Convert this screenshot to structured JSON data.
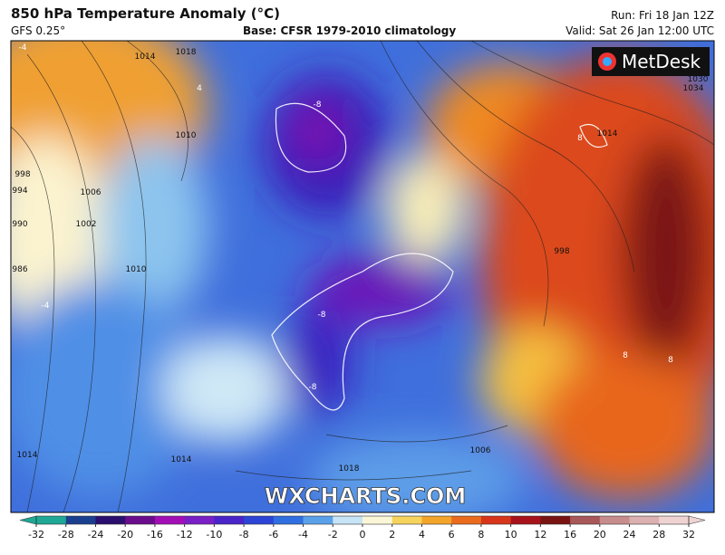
{
  "header": {
    "title": "850 hPa Temperature Anomaly (°C)",
    "model": "GFS 0.25°",
    "base": "Base: CFSR 1979-2010 climatology",
    "run": "Run: Fri 18 Jan 12Z",
    "valid": "Valid: Sat 26 Jan 12:00 UTC"
  },
  "logo": "MetDesk",
  "watermark": "WXCHARTS.COM",
  "map": {
    "labels": [
      "1014",
      "1018",
      "1010",
      "998",
      "994",
      "990",
      "986",
      "1006",
      "1002",
      "1010",
      "-4",
      "-8",
      "-8",
      "4",
      "8",
      "1030",
      "1034",
      "1014",
      "998",
      "8",
      "1006",
      "1018",
      "1014",
      "-8",
      "1014",
      "-4",
      "8"
    ]
  },
  "colorbar": {
    "ticks": [
      -32,
      -28,
      -24,
      -20,
      -16,
      -12,
      -10,
      -8,
      -6,
      -4,
      -2,
      0,
      2,
      4,
      6,
      8,
      10,
      12,
      16,
      20,
      24,
      28,
      32
    ],
    "colors": [
      "#1fa895",
      "#1b3f8f",
      "#2a0f6e",
      "#6b0c8c",
      "#a30fb5",
      "#7a1fc6",
      "#4a24c8",
      "#2c45d6",
      "#2f6fe0",
      "#5aa1ea",
      "#c6e4f5",
      "#fbf6d6",
      "#f6d35c",
      "#f3a52a",
      "#ea6b1d",
      "#d8361a",
      "#a8121a",
      "#7a1413",
      "#a85858",
      "#c78c8c",
      "#dcb0b0",
      "#efd3d3"
    ]
  }
}
